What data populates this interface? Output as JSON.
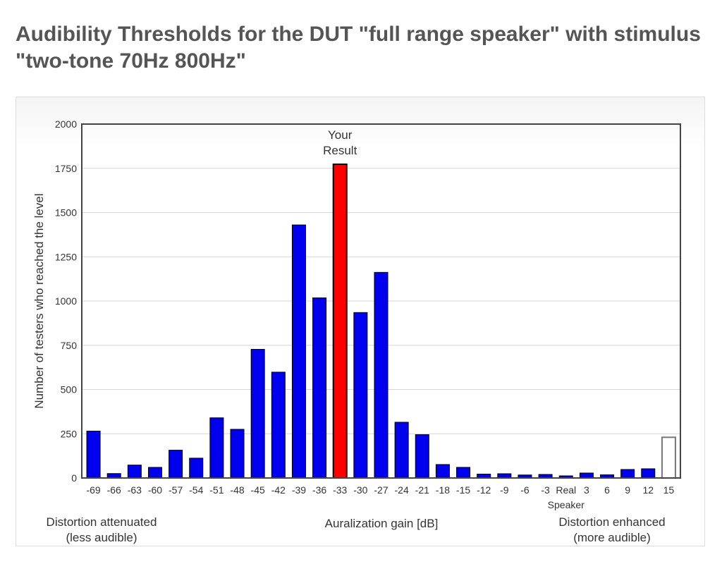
{
  "page": {
    "title": "Audibility Thresholds for the DUT \"full range speaker\" with stimulus \"two-tone 70Hz 800Hz\""
  },
  "chart_data": {
    "type": "bar",
    "title": "",
    "xlabel": "Auralization gain [dB]",
    "ylabel": "Number of testers who reached the level",
    "ylim": [
      0,
      2000
    ],
    "yticks": [
      0,
      250,
      500,
      750,
      1000,
      1250,
      1500,
      1750,
      2000
    ],
    "grid": true,
    "categories": [
      "-69",
      "-66",
      "-63",
      "-60",
      "-57",
      "-54",
      "-51",
      "-48",
      "-45",
      "-42",
      "-39",
      "-36",
      "-33",
      "-30",
      "-27",
      "-24",
      "-21",
      "-18",
      "-15",
      "-12",
      "-9",
      "-6",
      "-3",
      "Real Speaker",
      "3",
      "6",
      "9",
      "12",
      "15"
    ],
    "values": [
      265,
      25,
      73,
      60,
      157,
      112,
      340,
      275,
      727,
      598,
      1430,
      1018,
      1773,
      935,
      1162,
      315,
      245,
      76,
      60,
      22,
      24,
      17,
      20,
      12,
      28,
      18,
      48,
      52,
      230
    ],
    "bar_color": "#0000ee",
    "highlight_color": "#ff0000",
    "empty_bar_color": "#ffffff",
    "highlight_index": 12,
    "hollow_index": 28,
    "annotation": [
      "Your",
      "Result"
    ],
    "left_caption": [
      "Distortion attenuated",
      "(less audible)"
    ],
    "right_caption": [
      "Distortion enhanced",
      "(more audible)"
    ]
  }
}
